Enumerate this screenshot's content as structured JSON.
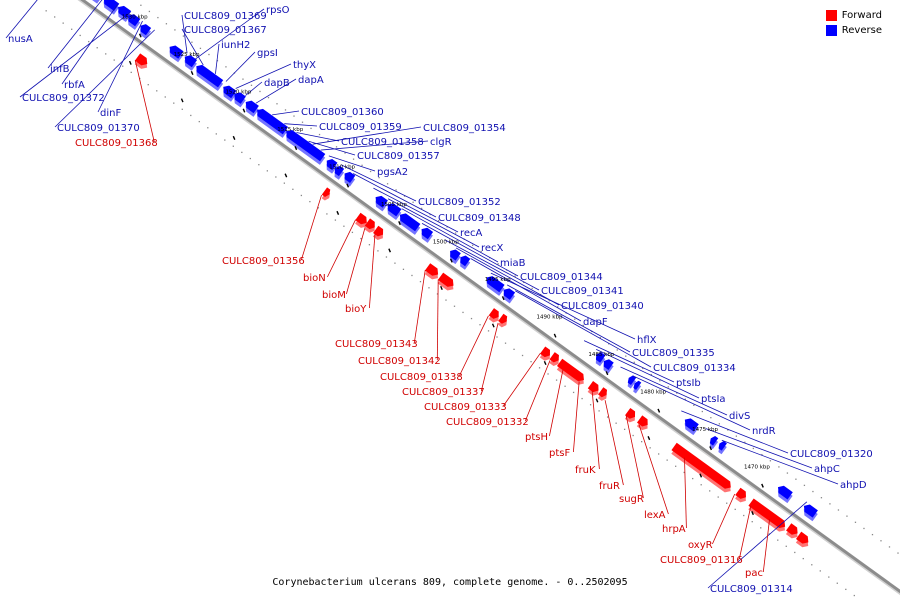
{
  "caption": "Corynebacterium ulcerans 809, complete genome. - 0..2502095",
  "colors": {
    "forward": "#ff0000",
    "reverse": "#0000ff",
    "backbone": "#8c8c8c",
    "forward_label": "#d00000",
    "reverse_label": "#1010b0"
  },
  "legend": [
    {
      "label": "Forward",
      "color": "#ff0000"
    },
    {
      "label": "Reverse",
      "color": "#0000ff"
    }
  ],
  "scale_marks": [
    "1530 kbp",
    "1525 kbp",
    "1520 kbp",
    "1515 kbp",
    "1510 kbp",
    "1505 kbp",
    "1500 kbp",
    "1495 kbp",
    "1490 kbp",
    "1485 kbp",
    "1480 kbp",
    "1475 kbp",
    "1470 kbp"
  ],
  "reverse_labels": [
    "nusA",
    "infB",
    "rbfA",
    "CULC809_01372",
    "dinF",
    "CULC809_01370",
    "CULC809_01369",
    "rpsO",
    "CULC809_01367",
    "iunH2",
    "gpsI",
    "thyX",
    "dapB",
    "dapA",
    "CULC809_01360",
    "CULC809_01359",
    "CULC809_01358",
    "CULC809_01354",
    "clgR",
    "CULC809_01357",
    "pgsA2",
    "CULC809_01352",
    "CULC809_01348",
    "recA",
    "recX",
    "miaB",
    "CULC809_01344",
    "CULC809_01341",
    "CULC809_01340",
    "dapF",
    "hflX",
    "CULC809_01335",
    "CULC809_01334",
    "ptsIb",
    "ptsIa",
    "divS",
    "nrdR",
    "CULC809_01320",
    "ahpC",
    "ahpD",
    "CULC809_01314"
  ],
  "forward_labels": [
    "CULC809_01368",
    "CULC809_01356",
    "bioN",
    "bioM",
    "bioY",
    "CULC809_01343",
    "CULC809_01342",
    "CULC809_01338",
    "CULC809_01337",
    "CULC809_01333",
    "CULC809_01332",
    "ptsH",
    "ptsF",
    "fruK",
    "fruR",
    "sugR",
    "lexA",
    "hrpA",
    "oxyR",
    "CULC809_01316",
    "pac"
  ]
}
